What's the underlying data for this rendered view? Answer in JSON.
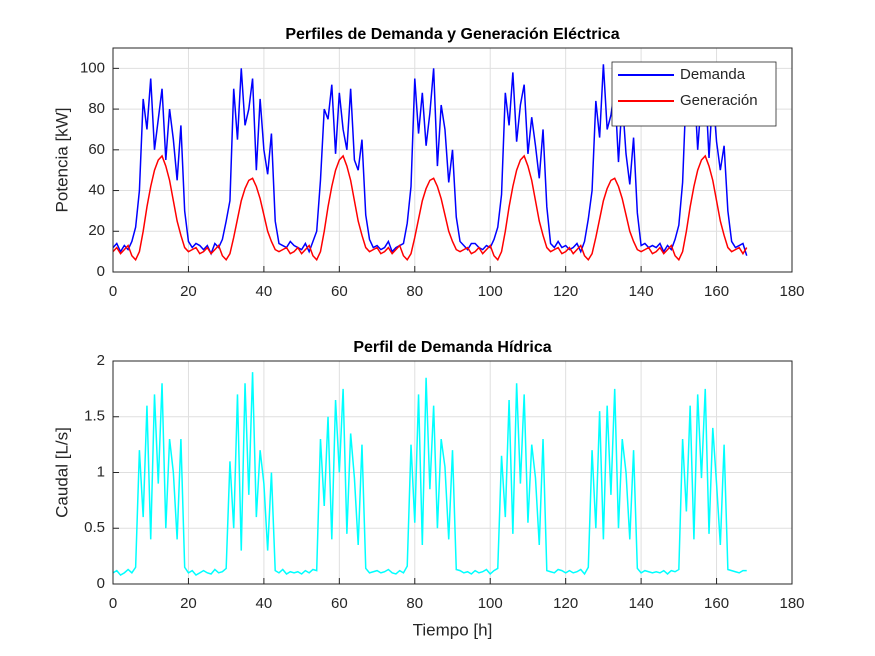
{
  "chart_data": [
    {
      "type": "line",
      "title": "Perfiles de Demanda y Generación Eléctrica",
      "ylabel": "Potencia [kW]",
      "x": [
        0,
        1,
        2,
        3,
        4,
        5,
        6,
        7,
        8,
        9,
        10,
        11,
        12,
        13,
        14,
        15,
        16,
        17,
        18,
        19,
        20,
        21,
        22,
        23,
        24,
        25,
        26,
        27,
        28,
        29,
        30,
        31,
        32,
        33,
        34,
        35,
        36,
        37,
        38,
        39,
        40,
        41,
        42,
        43,
        44,
        45,
        46,
        47,
        48,
        49,
        50,
        51,
        52,
        53,
        54,
        55,
        56,
        57,
        58,
        59,
        60,
        61,
        62,
        63,
        64,
        65,
        66,
        67,
        68,
        69,
        70,
        71,
        72,
        73,
        74,
        75,
        76,
        77,
        78,
        79,
        80,
        81,
        82,
        83,
        84,
        85,
        86,
        87,
        88,
        89,
        90,
        91,
        92,
        93,
        94,
        95,
        96,
        97,
        98,
        99,
        100,
        101,
        102,
        103,
        104,
        105,
        106,
        107,
        108,
        109,
        110,
        111,
        112,
        113,
        114,
        115,
        116,
        117,
        118,
        119,
        120,
        121,
        122,
        123,
        124,
        125,
        126,
        127,
        128,
        129,
        130,
        131,
        132,
        133,
        134,
        135,
        136,
        137,
        138,
        139,
        140,
        141,
        142,
        143,
        144,
        145,
        146,
        147,
        148,
        149,
        150,
        151,
        152,
        153,
        154,
        155,
        156,
        157,
        158,
        159,
        160,
        161,
        162,
        163,
        164,
        165,
        166,
        167,
        168
      ],
      "series": [
        {
          "name": "Demanda",
          "color": "#0000ff",
          "values": [
            12,
            14,
            10,
            13,
            11,
            15,
            22,
            40,
            85,
            70,
            95,
            60,
            75,
            90,
            55,
            80,
            65,
            45,
            72,
            30,
            15,
            12,
            14,
            13,
            11,
            13,
            9,
            14,
            12,
            16,
            25,
            35,
            90,
            65,
            100,
            72,
            80,
            95,
            50,
            85,
            60,
            48,
            68,
            25,
            14,
            13,
            12,
            15,
            13,
            12,
            11,
            14,
            10,
            15,
            20,
            45,
            80,
            75,
            92,
            58,
            88,
            70,
            60,
            90,
            55,
            50,
            65,
            28,
            16,
            12,
            13,
            11,
            12,
            15,
            10,
            12,
            13,
            14,
            24,
            42,
            95,
            68,
            88,
            62,
            78,
            100,
            52,
            82,
            70,
            44,
            60,
            27,
            15,
            13,
            11,
            14,
            14,
            12,
            11,
            13,
            12,
            16,
            22,
            38,
            88,
            72,
            98,
            64,
            82,
            92,
            58,
            76,
            62,
            46,
            70,
            32,
            14,
            12,
            15,
            12,
            13,
            11,
            12,
            14,
            10,
            15,
            26,
            40,
            84,
            66,
            102,
            70,
            77,
            90,
            54,
            85,
            58,
            43,
            66,
            29,
            13,
            14,
            12,
            13,
            12,
            14,
            10,
            13,
            11,
            16,
            23,
            44,
            92,
            74,
            96,
            60,
            86,
            94,
            56,
            88,
            64,
            50,
            62,
            30,
            15,
            12,
            13,
            14,
            8
          ]
        },
        {
          "name": "Generación",
          "color": "#ff0000",
          "values": [
            10,
            12,
            9,
            11,
            13,
            8,
            6,
            10,
            20,
            32,
            42,
            50,
            55,
            57,
            52,
            45,
            35,
            25,
            18,
            12,
            10,
            11,
            12,
            9,
            10,
            12,
            9,
            11,
            13,
            8,
            6,
            9,
            17,
            26,
            35,
            41,
            45,
            46,
            42,
            36,
            28,
            20,
            15,
            11,
            10,
            11,
            12,
            9,
            10,
            12,
            9,
            11,
            13,
            8,
            6,
            10,
            20,
            32,
            42,
            50,
            55,
            57,
            52,
            45,
            35,
            25,
            18,
            12,
            10,
            11,
            12,
            9,
            10,
            12,
            9,
            11,
            13,
            8,
            6,
            9,
            17,
            26,
            35,
            41,
            45,
            46,
            42,
            36,
            28,
            20,
            15,
            11,
            10,
            11,
            12,
            9,
            10,
            12,
            9,
            11,
            13,
            8,
            6,
            10,
            20,
            32,
            42,
            50,
            55,
            57,
            52,
            45,
            35,
            25,
            18,
            12,
            10,
            11,
            12,
            9,
            10,
            12,
            9,
            11,
            13,
            8,
            6,
            9,
            17,
            26,
            35,
            41,
            45,
            46,
            42,
            36,
            28,
            20,
            15,
            11,
            10,
            11,
            12,
            9,
            10,
            12,
            9,
            11,
            13,
            8,
            6,
            10,
            20,
            32,
            42,
            50,
            55,
            57,
            52,
            45,
            35,
            25,
            18,
            12,
            10,
            11,
            12,
            9,
            12
          ]
        }
      ],
      "xlim": [
        0,
        180
      ],
      "xticks": [
        0,
        20,
        40,
        60,
        80,
        100,
        120,
        140,
        160,
        180
      ],
      "ylim": [
        0,
        110
      ],
      "yticks": [
        0,
        20,
        40,
        60,
        80,
        100
      ],
      "grid": true,
      "legend": "northeast"
    },
    {
      "type": "line",
      "title": "Perfil de Demanda Hídrica",
      "ylabel": "Caudal [L/s]",
      "xlabel": "Tiempo [h]",
      "x": [
        0,
        1,
        2,
        3,
        4,
        5,
        6,
        7,
        8,
        9,
        10,
        11,
        12,
        13,
        14,
        15,
        16,
        17,
        18,
        19,
        20,
        21,
        22,
        23,
        24,
        25,
        26,
        27,
        28,
        29,
        30,
        31,
        32,
        33,
        34,
        35,
        36,
        37,
        38,
        39,
        40,
        41,
        42,
        43,
        44,
        45,
        46,
        47,
        48,
        49,
        50,
        51,
        52,
        53,
        54,
        55,
        56,
        57,
        58,
        59,
        60,
        61,
        62,
        63,
        64,
        65,
        66,
        67,
        68,
        69,
        70,
        71,
        72,
        73,
        74,
        75,
        76,
        77,
        78,
        79,
        80,
        81,
        82,
        83,
        84,
        85,
        86,
        87,
        88,
        89,
        90,
        91,
        92,
        93,
        94,
        95,
        96,
        97,
        98,
        99,
        100,
        101,
        102,
        103,
        104,
        105,
        106,
        107,
        108,
        109,
        110,
        111,
        112,
        113,
        114,
        115,
        116,
        117,
        118,
        119,
        120,
        121,
        122,
        123,
        124,
        125,
        126,
        127,
        128,
        129,
        130,
        131,
        132,
        133,
        134,
        135,
        136,
        137,
        138,
        139,
        140,
        141,
        142,
        143,
        144,
        145,
        146,
        147,
        148,
        149,
        150,
        151,
        152,
        153,
        154,
        155,
        156,
        157,
        158,
        159,
        160,
        161,
        162,
        163,
        164,
        165,
        166,
        167,
        168
      ],
      "series": [
        {
          "color": "#00ffff",
          "values": [
            0.1,
            0.12,
            0.08,
            0.1,
            0.13,
            0.1,
            0.15,
            1.2,
            0.6,
            1.6,
            0.4,
            1.7,
            0.9,
            1.8,
            0.5,
            1.3,
            1.0,
            0.4,
            1.3,
            0.15,
            0.1,
            0.12,
            0.08,
            0.1,
            0.12,
            0.1,
            0.09,
            0.13,
            0.1,
            0.11,
            0.14,
            1.1,
            0.5,
            1.7,
            0.3,
            1.8,
            0.8,
            1.9,
            0.6,
            1.2,
            0.9,
            0.3,
            1.0,
            0.12,
            0.1,
            0.13,
            0.09,
            0.11,
            0.1,
            0.11,
            0.09,
            0.12,
            0.1,
            0.13,
            0.12,
            1.3,
            0.7,
            1.5,
            0.4,
            1.65,
            1.0,
            1.75,
            0.45,
            1.35,
            0.95,
            0.35,
            1.25,
            0.14,
            0.1,
            0.11,
            0.12,
            0.1,
            0.11,
            0.13,
            0.1,
            0.09,
            0.12,
            0.1,
            0.16,
            1.25,
            0.55,
            1.7,
            0.35,
            1.85,
            0.85,
            1.6,
            0.5,
            1.3,
            1.05,
            0.4,
            1.2,
            0.13,
            0.12,
            0.1,
            0.11,
            0.09,
            0.12,
            0.1,
            0.11,
            0.13,
            0.09,
            0.12,
            0.14,
            1.15,
            0.6,
            1.65,
            0.45,
            1.8,
            0.9,
            1.7,
            0.55,
            1.25,
            0.95,
            0.35,
            1.3,
            0.12,
            0.11,
            0.1,
            0.13,
            0.12,
            0.1,
            0.12,
            0.1,
            0.11,
            0.13,
            0.09,
            0.15,
            1.2,
            0.5,
            1.55,
            0.4,
            1.6,
            0.8,
            1.75,
            0.5,
            1.3,
            1.0,
            0.4,
            1.2,
            0.14,
            0.1,
            0.12,
            0.11,
            0.1,
            0.11,
            0.1,
            0.12,
            0.09,
            0.12,
            0.11,
            0.13,
            1.3,
            0.65,
            1.6,
            0.4,
            1.7,
            0.95,
            1.75,
            0.45,
            1.4,
            0.9,
            0.35,
            1.25,
            0.13,
            0.12,
            0.11,
            0.1,
            0.12,
            0.12
          ]
        }
      ],
      "xlim": [
        0,
        180
      ],
      "xticks": [
        0,
        20,
        40,
        60,
        80,
        100,
        120,
        140,
        160,
        180
      ],
      "ylim": [
        0,
        2
      ],
      "yticks": [
        0,
        0.5,
        1,
        1.5,
        2
      ],
      "grid": true
    }
  ]
}
